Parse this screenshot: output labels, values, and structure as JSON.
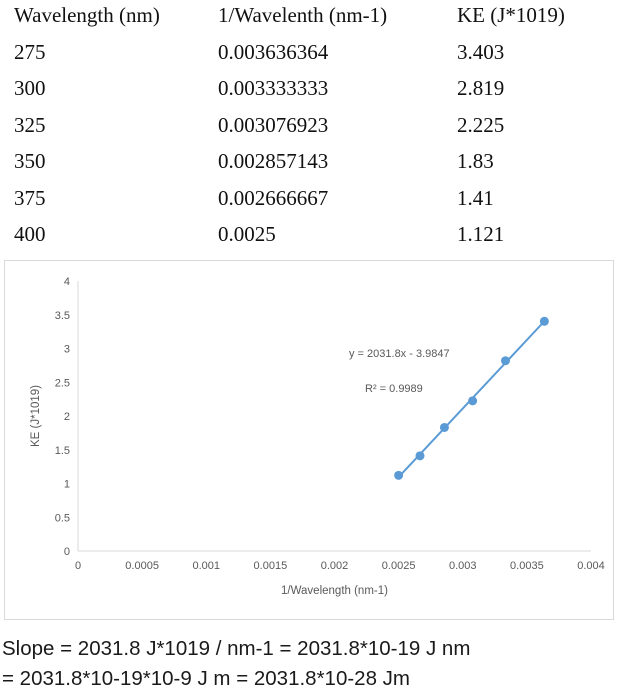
{
  "table": {
    "headers": [
      "Wavelength (nm)",
      "1/Wavelenth (nm-1)",
      "KE (J*1019)"
    ],
    "rows": [
      [
        "275",
        "0.003636364",
        "3.403"
      ],
      [
        "300",
        "0.003333333",
        "2.819"
      ],
      [
        "325",
        "0.003076923",
        "2.225"
      ],
      [
        "350",
        "0.002857143",
        "1.83"
      ],
      [
        "375",
        "0.002666667",
        "1.41"
      ],
      [
        "400",
        "0.0025",
        "1.121"
      ]
    ]
  },
  "chart_data": {
    "type": "scatter",
    "x": [
      0.003636364,
      0.003333333,
      0.003076923,
      0.002857143,
      0.002666667,
      0.0025
    ],
    "y": [
      3.403,
      2.819,
      2.225,
      1.83,
      1.41,
      1.121
    ],
    "xlabel": "1/Wavelength (nm-1)",
    "ylabel": "KE (J*1019)",
    "xlim": [
      0,
      0.004
    ],
    "ylim": [
      0,
      4
    ],
    "xticks": [
      "0",
      "0.0005",
      "0.001",
      "0.0015",
      "0.002",
      "0.0025",
      "0.003",
      "0.0035",
      "0.004"
    ],
    "yticks": [
      "0",
      "0.5",
      "1",
      "1.5",
      "2",
      "2.5",
      "3",
      "3.5",
      "4"
    ],
    "trendline": {
      "type": "linear",
      "slope": 2031.8,
      "intercept": -3.9847
    },
    "annotations": [
      "y = 2031.8x - 3.9847",
      "R² = 0.9989"
    ],
    "grid": false,
    "series_color": "#5b9bd5"
  },
  "footer": {
    "line1": "Slope = 2031.8 J*1019 / nm-1 = 2031.8*10-19 J nm",
    "line2": "= 2031.8*10-19*10-9 J m = 2031.8*10-28 Jm"
  }
}
